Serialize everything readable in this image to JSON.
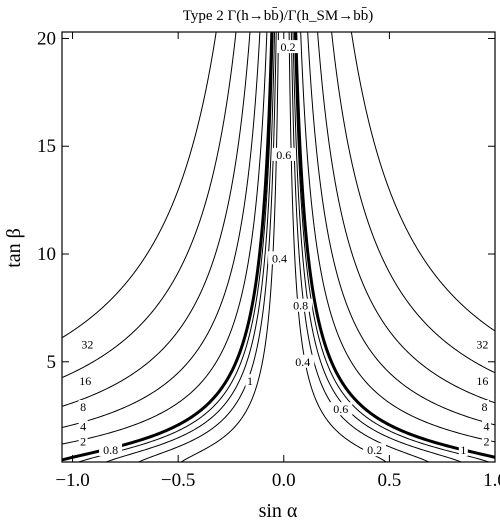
{
  "chart_data": {
    "type": "contour",
    "title": "Type 2 Γ(h→bb̄)/Γ(h_SM→bb̄)",
    "xlabel": "sin α",
    "ylabel": "tan β",
    "xlim": [
      -1.05,
      1.0
    ],
    "ylim": [
      0.35,
      20.3
    ],
    "x_ticks": [
      {
        "value": -1.0,
        "label": "−1.0"
      },
      {
        "value": -0.5,
        "label": "−0.5"
      },
      {
        "value": 0.0,
        "label": "0.0"
      },
      {
        "value": 0.5,
        "label": "0.5"
      },
      {
        "value": 1.0,
        "label": "1.0"
      }
    ],
    "y_ticks": [
      {
        "value": 5,
        "label": "5"
      },
      {
        "value": 10,
        "label": "10"
      },
      {
        "value": 15,
        "label": "15"
      },
      {
        "value": 20,
        "label": "20"
      }
    ],
    "levels": [
      0.2,
      0.4,
      0.6,
      0.8,
      1,
      2,
      4,
      8,
      16,
      32
    ],
    "highlighted_level": 1,
    "contour_labels": [
      {
        "text": "0.2",
        "x": 0.02,
        "y": 19.6
      },
      {
        "text": "0.6",
        "x": 0.0,
        "y": 14.6
      },
      {
        "text": "0.4",
        "x": -0.02,
        "y": 9.8
      },
      {
        "text": "0.8",
        "x": 0.08,
        "y": 7.6
      },
      {
        "text": "0.4",
        "x": 0.09,
        "y": 5.0
      },
      {
        "text": "1",
        "x": -0.16,
        "y": 4.1
      },
      {
        "text": "0.6",
        "x": 0.27,
        "y": 2.8
      },
      {
        "text": "0.2",
        "x": 0.43,
        "y": 0.9
      },
      {
        "text": "1",
        "x": 0.85,
        "y": 0.9
      },
      {
        "text": "0.8",
        "x": -0.82,
        "y": 0.9
      },
      {
        "text": "2",
        "x": -0.95,
        "y": 1.3
      },
      {
        "text": "4",
        "x": -0.95,
        "y": 2.0
      },
      {
        "text": "8",
        "x": -0.95,
        "y": 2.9
      },
      {
        "text": "16",
        "x": -0.94,
        "y": 4.1
      },
      {
        "text": "32",
        "x": -0.93,
        "y": 5.8
      },
      {
        "text": "2",
        "x": 0.96,
        "y": 1.3
      },
      {
        "text": "4",
        "x": 0.96,
        "y": 2.0
      },
      {
        "text": "8",
        "x": 0.95,
        "y": 2.9
      },
      {
        "text": "16",
        "x": 0.94,
        "y": 4.1
      },
      {
        "text": "32",
        "x": 0.94,
        "y": 5.8
      }
    ],
    "grid": false
  }
}
